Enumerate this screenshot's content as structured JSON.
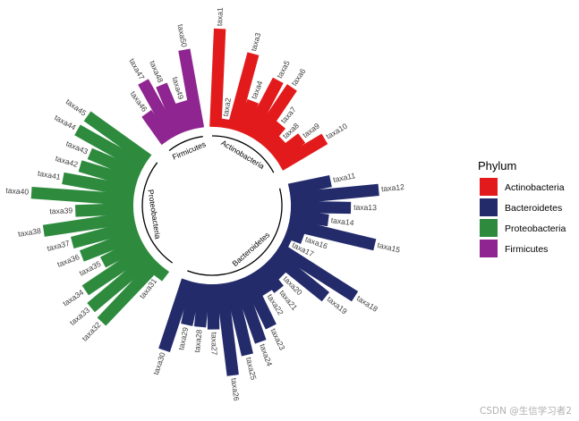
{
  "chart_data": {
    "type": "bar",
    "subtype": "circular-grouped",
    "title": "",
    "xlabel": "",
    "ylabel": "",
    "legend": {
      "title": "Phylum",
      "position": "right",
      "entries": [
        {
          "name": "Actinobacteria",
          "color": "#e31a1c"
        },
        {
          "name": "Bacteroidetes",
          "color": "#232b6b"
        },
        {
          "name": "Proteobacteria",
          "color": "#2e8b3e"
        },
        {
          "name": "Firmicutes",
          "color": "#8e2590"
        }
      ]
    },
    "groups": [
      {
        "name": "Actinobacteria",
        "color": "#e31a1c",
        "categories": [
          "taxa1",
          "taxa2",
          "taxa3",
          "taxa4",
          "taxa5",
          "taxa6",
          "taxa7",
          "taxa8",
          "taxa9",
          "taxa10"
        ],
        "values": [
          100,
          9,
          80,
          34,
          64,
          65,
          28,
          18,
          34,
          53
        ]
      },
      {
        "name": "Bacteroidetes",
        "color": "#232b6b",
        "categories": [
          "taxa11",
          "taxa12",
          "taxa13",
          "taxa14",
          "taxa15",
          "taxa16",
          "taxa17",
          "taxa18",
          "taxa19",
          "taxa20",
          "taxa21",
          "taxa22",
          "taxa23",
          "taxa24",
          "taxa25",
          "taxa26",
          "taxa27",
          "taxa28",
          "taxa29",
          "taxa30"
        ],
        "values": [
          43,
          90,
          61,
          39,
          90,
          18,
          8,
          92,
          68,
          21,
          29,
          25,
          57,
          67,
          76,
          94,
          46,
          44,
          44,
          75
        ]
      },
      {
        "name": "Proteobacteria",
        "color": "#2e8b3e",
        "categories": [
          "taxa31",
          "taxa32",
          "taxa33",
          "taxa34",
          "taxa35",
          "taxa36",
          "taxa37",
          "taxa38",
          "taxa39",
          "taxa40",
          "taxa41",
          "taxa42",
          "taxa43",
          "taxa44",
          "taxa45"
        ],
        "values": [
          12,
          83,
          81,
          75,
          45,
          62,
          67,
          93,
          59,
          104,
          74,
          60,
          55,
          77,
          76
        ]
      },
      {
        "name": "Firmicutes",
        "color": "#8e2590",
        "categories": [
          "taxa46",
          "taxa47",
          "taxa48",
          "taxa49",
          "taxa50"
        ],
        "values": [
          35,
          64,
          53,
          30,
          81
        ]
      }
    ],
    "grid": false
  },
  "watermark": "CSDN @生信学习者2"
}
